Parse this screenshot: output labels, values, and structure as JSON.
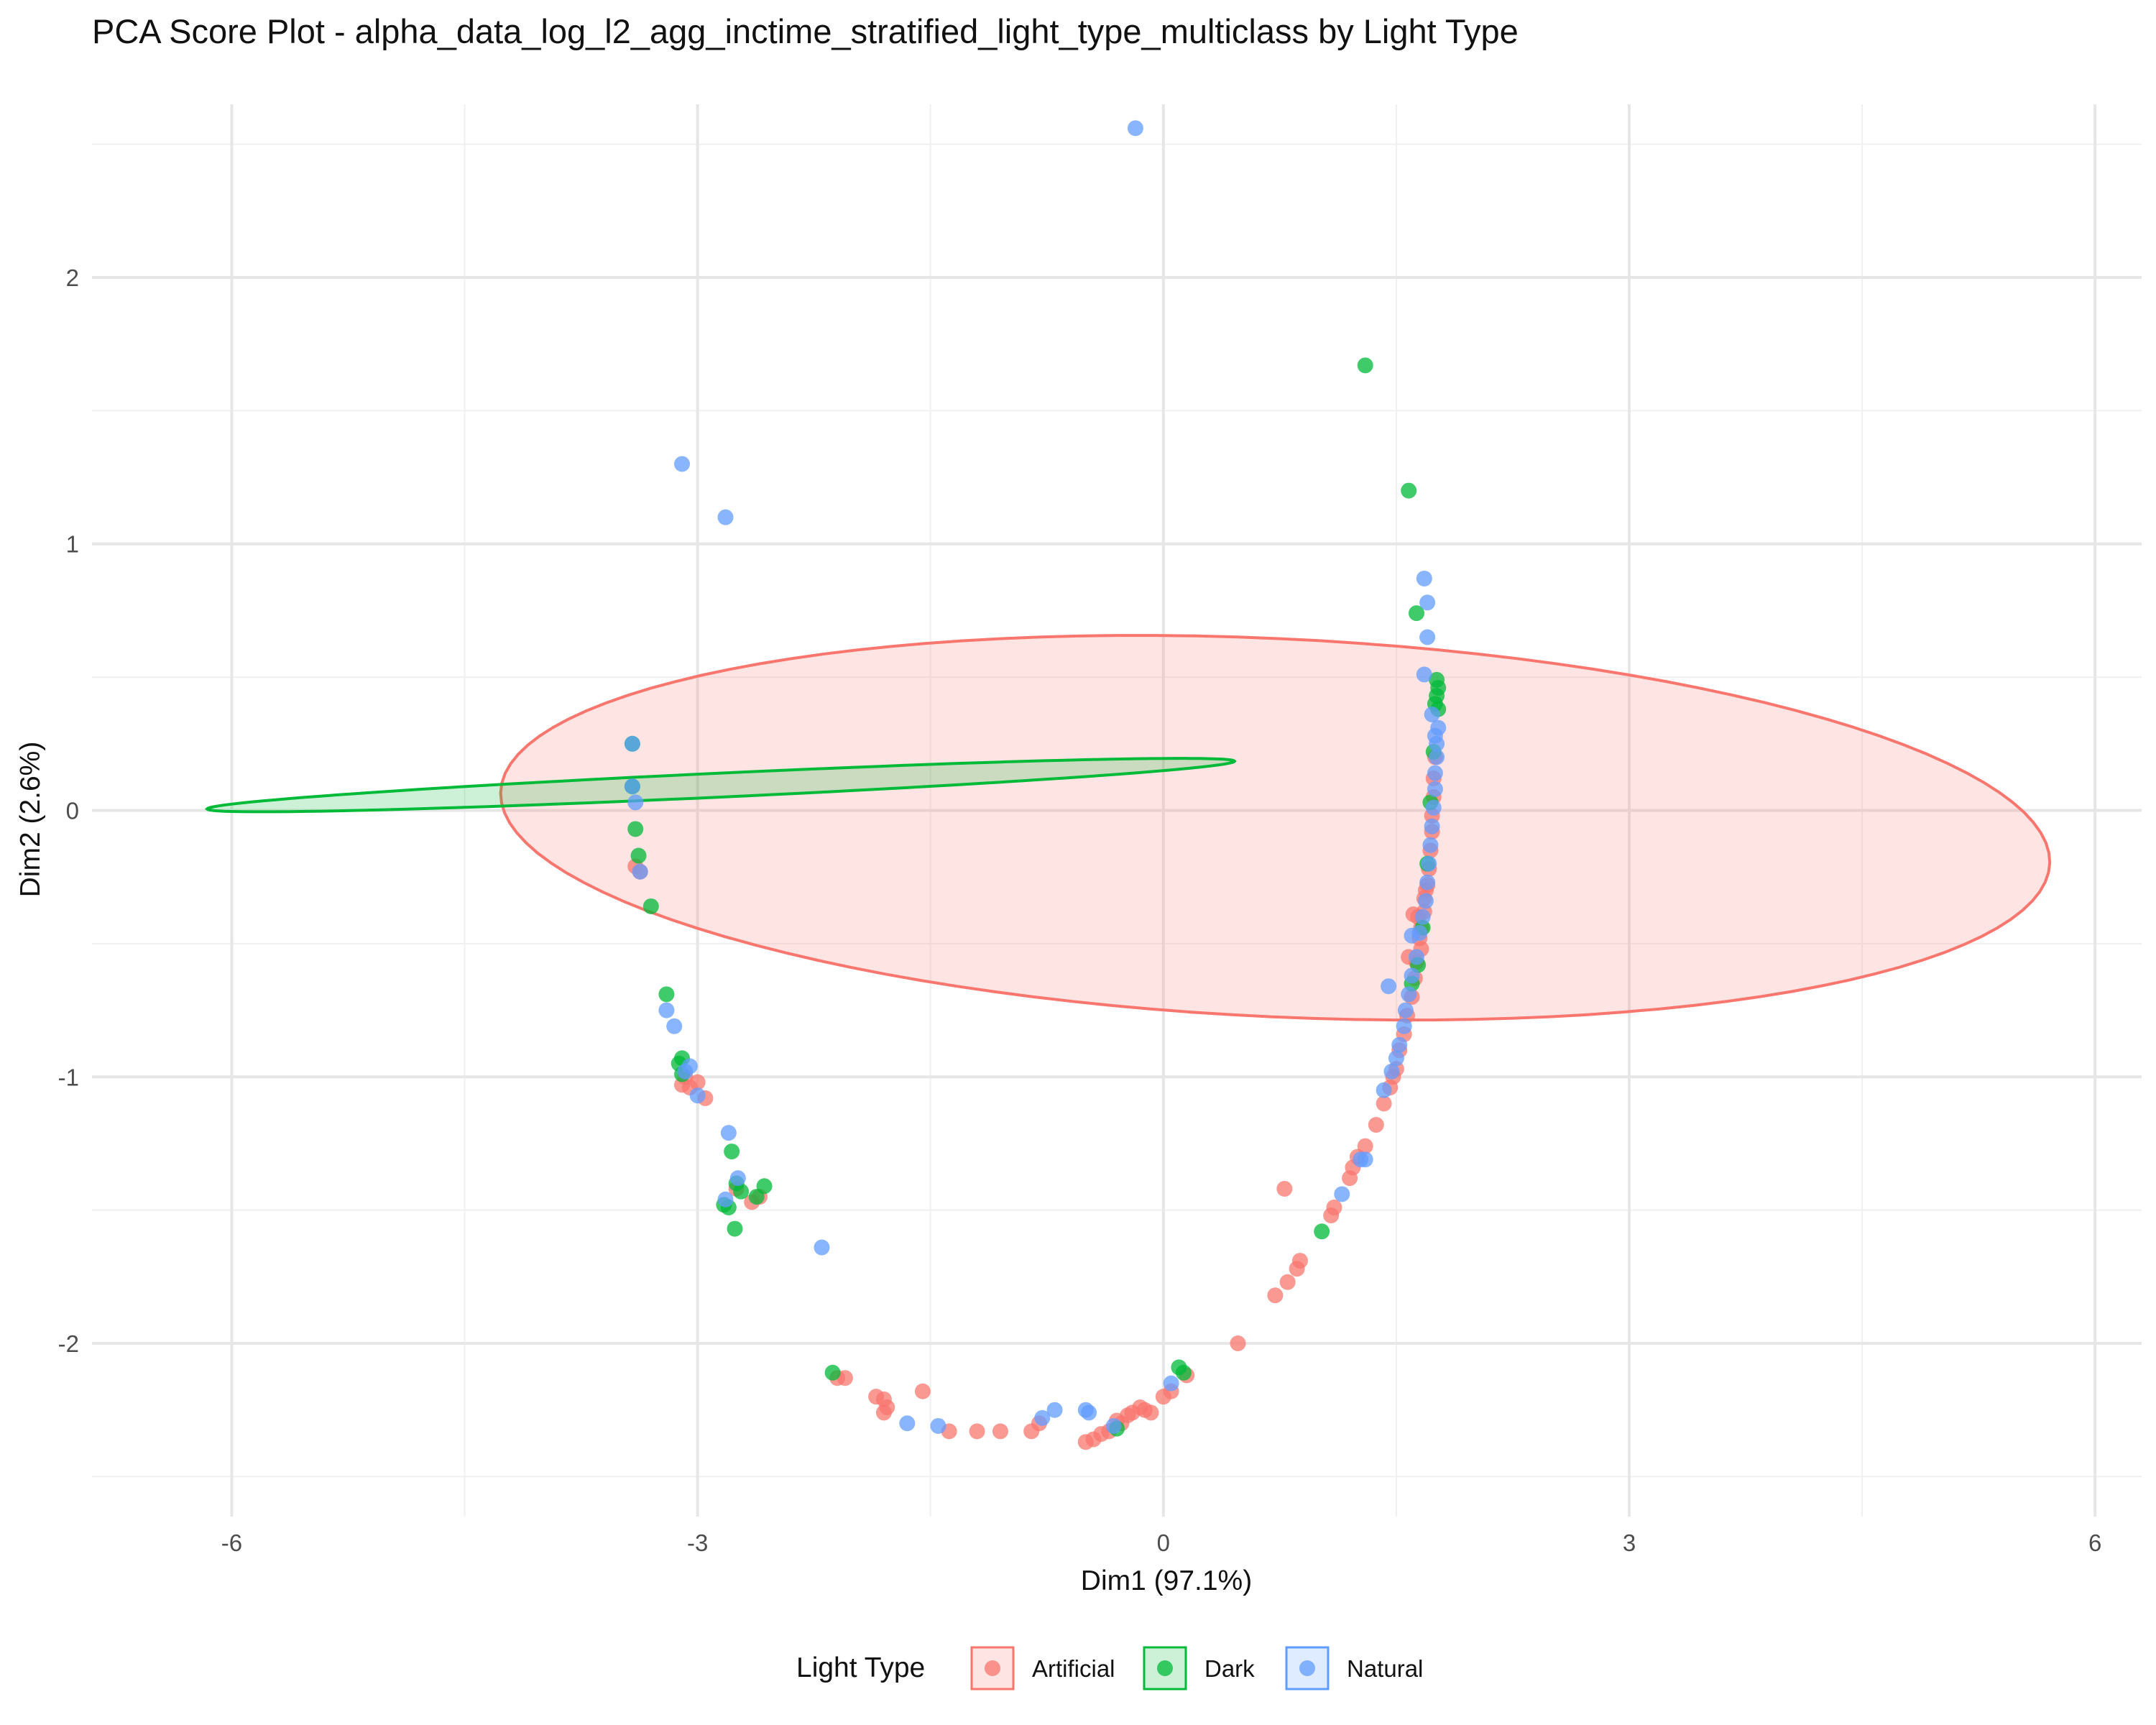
{
  "chart_data": {
    "type": "scatter",
    "title": "PCA Score Plot - alpha_data_log_l2_agg_inctime_stratified_light_type_multiclass by Light Type",
    "xlabel": "Dim1 (97.1%)",
    "ylabel": "Dim2 (2.6%)",
    "xlim": [
      -6.9,
      6.3
    ],
    "ylim": [
      -2.65,
      2.65
    ],
    "x_ticks": [
      -6,
      -3,
      0,
      3,
      6
    ],
    "x_tick_labels": [
      "-6",
      "-3",
      "0",
      "3",
      "6"
    ],
    "y_ticks": [
      -2,
      -1,
      0,
      1,
      2
    ],
    "y_tick_labels": [
      "-2",
      "-1",
      "0",
      "1",
      "2"
    ],
    "grid": true,
    "legend": {
      "title": "Light Type",
      "placement": "bottom",
      "entries": [
        "Artificial",
        "Dark",
        "Natural"
      ]
    },
    "series": [
      {
        "name": "Artificial",
        "color": "#F8766D",
        "points": [
          [
            -3.4,
            -0.21
          ],
          [
            -3.37,
            -0.23
          ],
          [
            -3.0,
            -1.02
          ],
          [
            -3.05,
            -1.04
          ],
          [
            -2.95,
            -1.08
          ],
          [
            -3.08,
            -1.0
          ],
          [
            -3.1,
            -1.03
          ],
          [
            -2.75,
            -1.42
          ],
          [
            -2.65,
            -1.47
          ],
          [
            -2.6,
            -1.45
          ],
          [
            -2.1,
            -2.13
          ],
          [
            -2.05,
            -2.13
          ],
          [
            -1.85,
            -2.2
          ],
          [
            -1.8,
            -2.21
          ],
          [
            -1.78,
            -2.24
          ],
          [
            -1.8,
            -2.26
          ],
          [
            -1.55,
            -2.18
          ],
          [
            -1.38,
            -2.33
          ],
          [
            -1.2,
            -2.33
          ],
          [
            -1.05,
            -2.33
          ],
          [
            -0.85,
            -2.33
          ],
          [
            -0.8,
            -2.3
          ],
          [
            -0.5,
            -2.37
          ],
          [
            -0.45,
            -2.36
          ],
          [
            -0.4,
            -2.34
          ],
          [
            -0.35,
            -2.33
          ],
          [
            -0.3,
            -2.29
          ],
          [
            -0.27,
            -2.3
          ],
          [
            -0.23,
            -2.27
          ],
          [
            -0.2,
            -2.26
          ],
          [
            -0.15,
            -2.24
          ],
          [
            -0.12,
            -2.25
          ],
          [
            -0.08,
            -2.26
          ],
          [
            0.0,
            -2.2
          ],
          [
            0.05,
            -2.18
          ],
          [
            0.15,
            -2.12
          ],
          [
            0.48,
            -2.0
          ],
          [
            0.72,
            -1.82
          ],
          [
            0.8,
            -1.77
          ],
          [
            0.86,
            -1.72
          ],
          [
            0.88,
            -1.69
          ],
          [
            0.78,
            -1.42
          ],
          [
            1.08,
            -1.52
          ],
          [
            1.1,
            -1.49
          ],
          [
            1.2,
            -1.38
          ],
          [
            1.22,
            -1.34
          ],
          [
            1.25,
            -1.3
          ],
          [
            1.3,
            -1.26
          ],
          [
            1.37,
            -1.18
          ],
          [
            1.42,
            -1.1
          ],
          [
            1.46,
            -1.04
          ],
          [
            1.48,
            -1.0
          ],
          [
            1.5,
            -0.97
          ],
          [
            1.52,
            -0.9
          ],
          [
            1.55,
            -0.84
          ],
          [
            1.57,
            -0.77
          ],
          [
            1.6,
            -0.7
          ],
          [
            1.62,
            -0.63
          ],
          [
            1.63,
            -0.57
          ],
          [
            1.58,
            -0.55
          ],
          [
            1.65,
            -0.48
          ],
          [
            1.66,
            -0.44
          ],
          [
            1.68,
            -0.38
          ],
          [
            1.68,
            -0.33
          ],
          [
            1.7,
            -0.28
          ],
          [
            1.71,
            -0.22
          ],
          [
            1.72,
            -0.15
          ],
          [
            1.73,
            -0.08
          ],
          [
            1.73,
            -0.02
          ],
          [
            1.74,
            0.05
          ],
          [
            1.74,
            0.12
          ],
          [
            1.75,
            0.2
          ],
          [
            1.61,
            -0.39
          ],
          [
            1.64,
            -0.4
          ],
          [
            1.66,
            -0.52
          ],
          [
            1.69,
            -0.3
          ]
        ]
      },
      {
        "name": "Dark",
        "color": "#00BA38",
        "points": [
          [
            1.3,
            1.67
          ],
          [
            1.58,
            1.2
          ],
          [
            1.63,
            0.74
          ],
          [
            1.76,
            0.49
          ],
          [
            1.77,
            0.46
          ],
          [
            1.76,
            0.43
          ],
          [
            1.75,
            0.4
          ],
          [
            1.77,
            0.38
          ],
          [
            -3.42,
            0.25
          ],
          [
            -3.42,
            0.09
          ],
          [
            -3.4,
            -0.07
          ],
          [
            -3.38,
            -0.17
          ],
          [
            -3.3,
            -0.36
          ],
          [
            -3.2,
            -0.69
          ],
          [
            -3.1,
            -0.93
          ],
          [
            -3.12,
            -0.95
          ],
          [
            -3.1,
            -0.99
          ],
          [
            -2.78,
            -1.28
          ],
          [
            -2.75,
            -1.4
          ],
          [
            -2.72,
            -1.43
          ],
          [
            -2.62,
            -1.45
          ],
          [
            -2.57,
            -1.41
          ],
          [
            -2.83,
            -1.48
          ],
          [
            -2.8,
            -1.49
          ],
          [
            -2.76,
            -1.57
          ],
          [
            -2.13,
            -2.11
          ],
          [
            0.1,
            -2.09
          ],
          [
            0.13,
            -2.11
          ],
          [
            1.02,
            -1.58
          ],
          [
            -0.3,
            -2.32
          ],
          [
            1.6,
            -0.65
          ],
          [
            1.64,
            -0.58
          ],
          [
            1.67,
            -0.44
          ],
          [
            1.7,
            -0.2
          ],
          [
            1.72,
            0.03
          ],
          [
            1.74,
            0.22
          ]
        ]
      },
      {
        "name": "Natural",
        "color": "#619CFF",
        "points": [
          [
            -0.18,
            2.56
          ],
          [
            -3.1,
            1.3
          ],
          [
            -2.82,
            1.1
          ],
          [
            1.68,
            0.87
          ],
          [
            1.7,
            0.78
          ],
          [
            1.7,
            0.65
          ],
          [
            1.68,
            0.51
          ],
          [
            -3.42,
            0.25
          ],
          [
            -3.42,
            0.09
          ],
          [
            -3.4,
            0.03
          ],
          [
            -3.37,
            -0.23
          ],
          [
            -3.2,
            -0.75
          ],
          [
            -3.15,
            -0.81
          ],
          [
            -3.08,
            -0.98
          ],
          [
            -3.05,
            -0.96
          ],
          [
            -3.0,
            -1.07
          ],
          [
            -2.8,
            -1.21
          ],
          [
            -2.74,
            -1.38
          ],
          [
            -2.82,
            -1.46
          ],
          [
            -2.2,
            -1.64
          ],
          [
            -1.65,
            -2.3
          ],
          [
            -1.45,
            -2.31
          ],
          [
            -0.78,
            -2.28
          ],
          [
            -0.7,
            -2.25
          ],
          [
            -0.5,
            -2.25
          ],
          [
            -0.48,
            -2.26
          ],
          [
            -0.32,
            -2.31
          ],
          [
            0.05,
            -2.15
          ],
          [
            1.45,
            -0.66
          ],
          [
            1.42,
            -1.05
          ],
          [
            1.15,
            -1.44
          ],
          [
            1.27,
            -1.31
          ],
          [
            1.3,
            -1.31
          ],
          [
            1.47,
            -0.98
          ],
          [
            1.5,
            -0.93
          ],
          [
            1.52,
            -0.88
          ],
          [
            1.55,
            -0.81
          ],
          [
            1.56,
            -0.75
          ],
          [
            1.58,
            -0.69
          ],
          [
            1.6,
            -0.62
          ],
          [
            1.6,
            -0.47
          ],
          [
            1.65,
            -0.46
          ],
          [
            1.63,
            -0.55
          ],
          [
            1.67,
            -0.4
          ],
          [
            1.69,
            -0.34
          ],
          [
            1.7,
            -0.27
          ],
          [
            1.71,
            -0.2
          ],
          [
            1.72,
            -0.13
          ],
          [
            1.73,
            -0.06
          ],
          [
            1.74,
            0.01
          ],
          [
            1.75,
            0.08
          ],
          [
            1.75,
            0.14
          ],
          [
            1.76,
            0.2
          ],
          [
            1.76,
            0.25
          ],
          [
            1.77,
            0.31
          ],
          [
            1.75,
            0.28
          ],
          [
            1.73,
            0.36
          ]
        ]
      }
    ],
    "ellipses": [
      {
        "series": "Artificial",
        "center": [
          0.72,
          -0.065
        ],
        "semi_major": 4.99,
        "semi_minor": 0.71,
        "angle_deg": -1.5,
        "fill": "#F8766D",
        "stroke": "#F8766D"
      },
      {
        "series": "Dark",
        "center": [
          -2.85,
          0.095
        ],
        "semi_major": 3.31,
        "semi_minor": 0.045,
        "angle_deg": 1.55,
        "fill": "#00BA38",
        "stroke": "#00BA38"
      }
    ]
  }
}
